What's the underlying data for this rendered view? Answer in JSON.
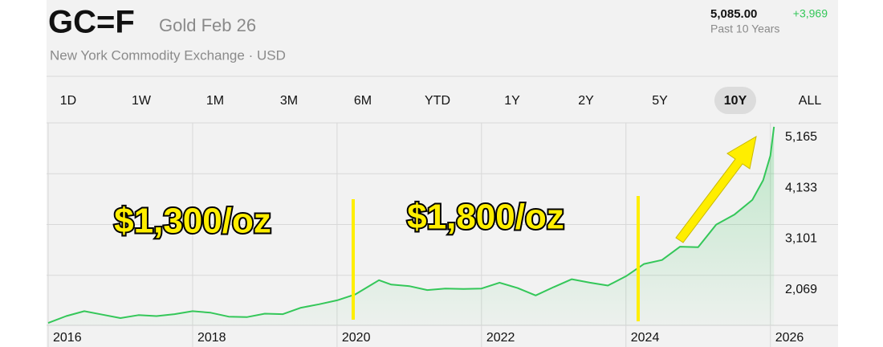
{
  "header": {
    "symbol": "GC=F",
    "name": "Gold Feb 26",
    "exchange": "New York Commodity Exchange · USD",
    "price": "5,085.00",
    "change": "+3,969",
    "period": "Past 10 Years"
  },
  "tabs": [
    "1D",
    "1W",
    "1M",
    "3M",
    "6M",
    "YTD",
    "1Y",
    "2Y",
    "5Y",
    "10Y",
    "ALL"
  ],
  "selected_tab": 9,
  "annotations": [
    "$1,300/oz",
    "$1,800/oz"
  ],
  "chart_data": {
    "type": "area",
    "color": "#34c759",
    "x": [
      2016.0,
      2016.25,
      2016.5,
      2016.75,
      2017.0,
      2017.25,
      2017.5,
      2017.75,
      2018.0,
      2018.25,
      2018.5,
      2018.75,
      2019.0,
      2019.25,
      2019.5,
      2019.75,
      2020.0,
      2020.25,
      2020.5,
      2020.58,
      2020.75,
      2021.0,
      2021.25,
      2021.5,
      2021.75,
      2022.0,
      2022.25,
      2022.5,
      2022.75,
      2023.0,
      2023.25,
      2023.5,
      2023.75,
      2024.0,
      2024.25,
      2024.5,
      2024.75,
      2025.0,
      2025.25,
      2025.5,
      2025.75,
      2025.9,
      2026.0,
      2026.05
    ],
    "values": [
      1100,
      1240,
      1340,
      1270,
      1200,
      1260,
      1240,
      1280,
      1340,
      1310,
      1230,
      1220,
      1290,
      1280,
      1410,
      1480,
      1560,
      1680,
      1900,
      1970,
      1880,
      1850,
      1770,
      1800,
      1790,
      1800,
      1920,
      1810,
      1660,
      1830,
      1990,
      1920,
      1860,
      2050,
      2300,
      2380,
      2650,
      2640,
      3100,
      3300,
      3600,
      4000,
      4500,
      5085
    ],
    "xlim": [
      2016,
      2026.17
    ],
    "xticks": [
      2016,
      2018,
      2020,
      2022,
      2024,
      2026
    ],
    "ylim": [
      1053,
      5165
    ],
    "yticks": [
      {
        "value": 2069,
        "label": "2,069"
      },
      {
        "value": 3101,
        "label": "3,101"
      },
      {
        "value": 4133,
        "label": "4,133"
      },
      {
        "value": 5165,
        "label": "5,165"
      }
    ],
    "grid": true
  }
}
